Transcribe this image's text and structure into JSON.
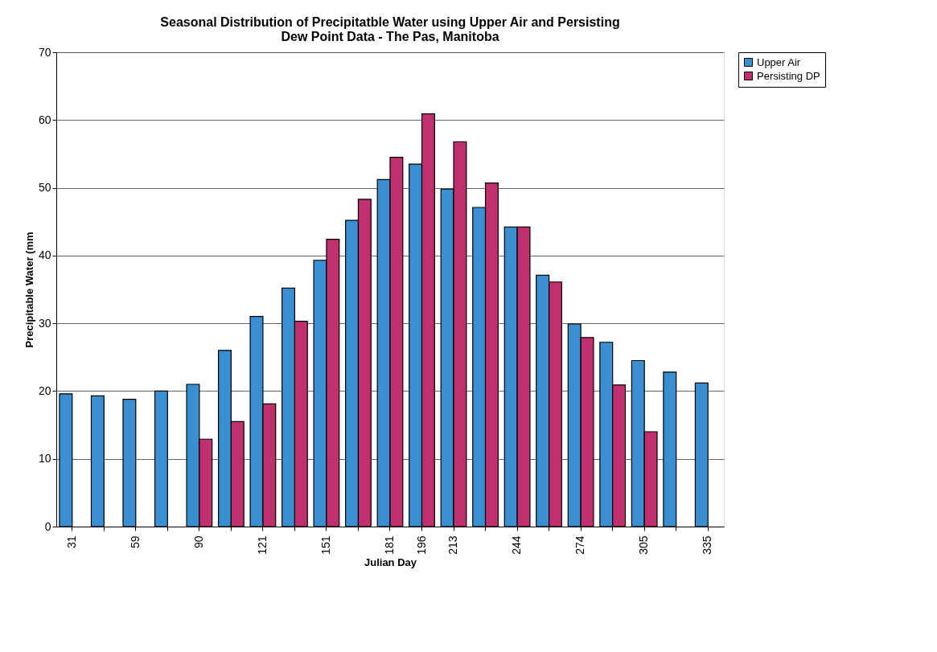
{
  "chart_data": {
    "type": "bar",
    "title": [
      "Seasonal Distribution of Precipitatble Water using Upper Air  and Persisting",
      "Dew Point Data - The Pas, Manitoba"
    ],
    "xlabel": "Julian Day",
    "ylabel": "Precipitable Water (mm",
    "categories": [
      "31",
      null,
      "59",
      null,
      "90",
      null,
      "121",
      null,
      "151",
      null,
      "181",
      "196",
      "213",
      null,
      "244",
      null,
      "274",
      null,
      "305",
      null,
      "335"
    ],
    "series": [
      {
        "name": "Upper Air",
        "color": "#3a8fd0",
        "values": [
          19.6,
          19.3,
          18.8,
          20,
          21,
          26,
          31,
          35.2,
          39.3,
          45.2,
          51.2,
          53.5,
          49.8,
          47.1,
          44.2,
          37.1,
          29.9,
          27.2,
          24.5,
          22.8,
          21.2
        ]
      },
      {
        "name": "Persisting DP",
        "color": "#c0306f",
        "values": [
          null,
          null,
          null,
          null,
          12.9,
          15.5,
          18.1,
          30.3,
          42.4,
          48.3,
          54.5,
          60.9,
          56.8,
          50.7,
          44.2,
          36.1,
          27.9,
          20.9,
          14,
          null,
          null
        ]
      }
    ],
    "ylim": [
      0,
      70
    ],
    "yticks": [
      0,
      10,
      20,
      30,
      40,
      50,
      60,
      70
    ],
    "grid": "y",
    "legend": "right"
  }
}
